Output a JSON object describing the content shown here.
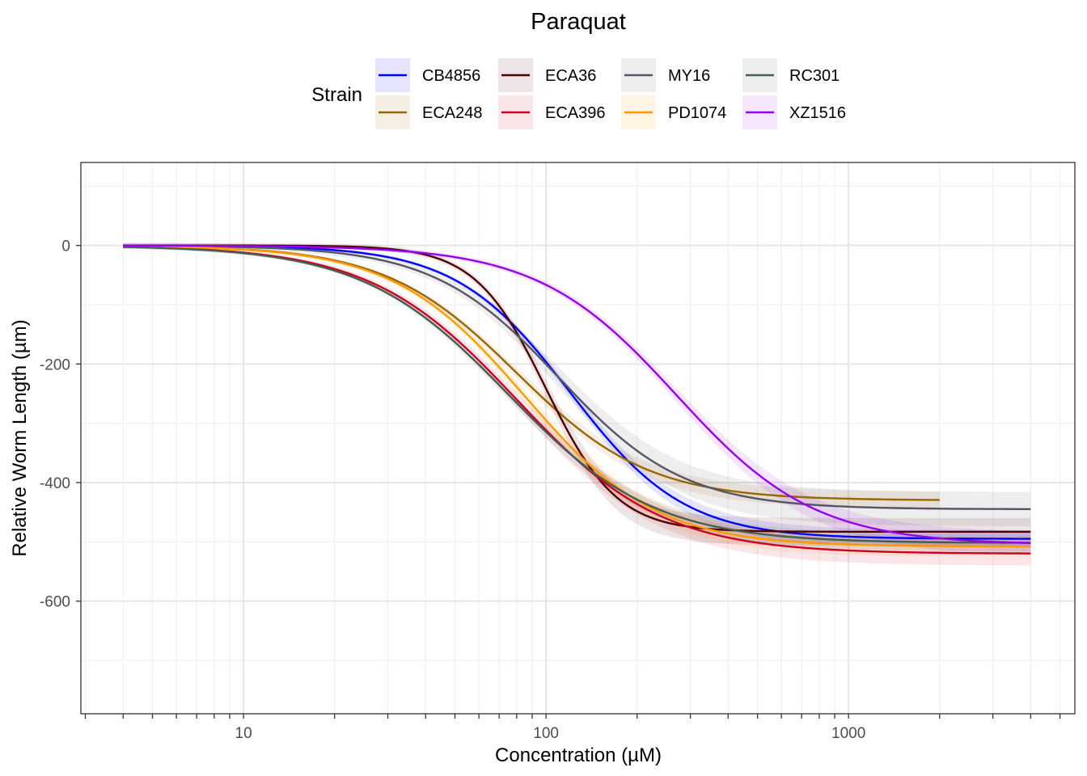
{
  "chart_data": {
    "type": "line",
    "title": "Paraquat",
    "xlabel": "Concentration (µM)",
    "ylabel": "Relative Worm Length (µm)",
    "x_scale": "log10",
    "xlim": [
      2.9,
      5600
    ],
    "ylim": [
      -790,
      140
    ],
    "x_major_ticks": [
      10,
      100,
      1000
    ],
    "x_tick_labels": [
      "10",
      "100",
      "1000"
    ],
    "y_major_ticks": [
      0,
      -200,
      -400,
      -600
    ],
    "y_tick_labels": [
      "0",
      "-200",
      "-400",
      "-600"
    ],
    "legend": {
      "title": "Strain",
      "position": "top",
      "entries": [
        "CB4856",
        "ECA248",
        "ECA36",
        "ECA396",
        "MY16",
        "PD1074",
        "RC301",
        "XZ1516"
      ]
    },
    "series": [
      {
        "name": "CB4856",
        "color": "#0000ff",
        "x_range": [
          4,
          4000
        ],
        "top": 0,
        "bottom": -495,
        "ec50": 120,
        "hill": 2.3,
        "ci": 10
      },
      {
        "name": "ECA248",
        "color": "#996600",
        "x_range": [
          4,
          2000
        ],
        "top": 0,
        "bottom": -430,
        "ec50": 80,
        "hill": 2.0,
        "ci": 10
      },
      {
        "name": "ECA36",
        "color": "#4d0000",
        "x_range": [
          4,
          4000
        ],
        "top": 0,
        "bottom": -483,
        "ec50": 100,
        "hill": 3.7,
        "ci": 16
      },
      {
        "name": "ECA396",
        "color": "#cc0022",
        "x_range": [
          4,
          4000
        ],
        "top": 0,
        "bottom": -520,
        "ec50": 80,
        "hill": 1.8,
        "ci": 14
      },
      {
        "name": "MY16",
        "color": "#555566",
        "x_range": [
          4,
          4000
        ],
        "top": 0,
        "bottom": -445,
        "ec50": 110,
        "hill": 2.1,
        "ci": 20
      },
      {
        "name": "PD1074",
        "color": "#ff9900",
        "x_range": [
          4,
          4000
        ],
        "top": 0,
        "bottom": -508,
        "ec50": 85,
        "hill": 2.0,
        "ci": 12
      },
      {
        "name": "RC301",
        "color": "#445e50",
        "x_range": [
          4,
          4000
        ],
        "top": 0,
        "bottom": -502,
        "ec50": 75,
        "hill": 1.8,
        "ci": 10
      },
      {
        "name": "XZ1516",
        "color": "#9900ee",
        "x_range": [
          4,
          4000
        ],
        "top": 0,
        "bottom": -505,
        "ec50": 270,
        "hill": 1.9,
        "ci": 14
      }
    ]
  }
}
